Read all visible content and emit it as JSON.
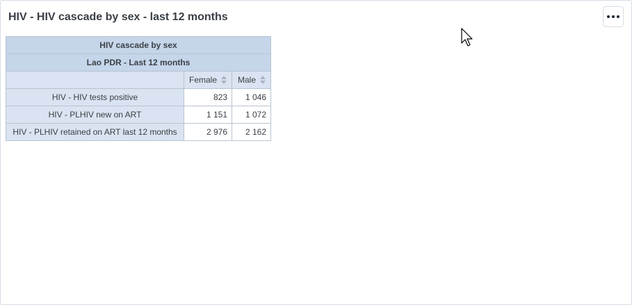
{
  "widget": {
    "title": "HIV - HIV cascade by sex - last 12 months",
    "menu_icon": "more-horizontal-icon"
  },
  "table": {
    "title": "HIV cascade by sex",
    "subtitle": "Lao PDR - Last 12 months",
    "columns": [
      "Female",
      "Male"
    ],
    "rows": [
      {
        "label": "HIV - HIV tests positive",
        "values": [
          "823",
          "1 046"
        ]
      },
      {
        "label": "HIV - PLHIV new on ART",
        "values": [
          "1 151",
          "1 072"
        ]
      },
      {
        "label": "HIV - PLHIV retained on ART last 12 months",
        "values": [
          "2 976",
          "2 162"
        ]
      }
    ]
  },
  "colors": {
    "header_bg": "#c5d5ea",
    "row_header_bg": "#dae3f1",
    "border": "#b7c3d0"
  }
}
